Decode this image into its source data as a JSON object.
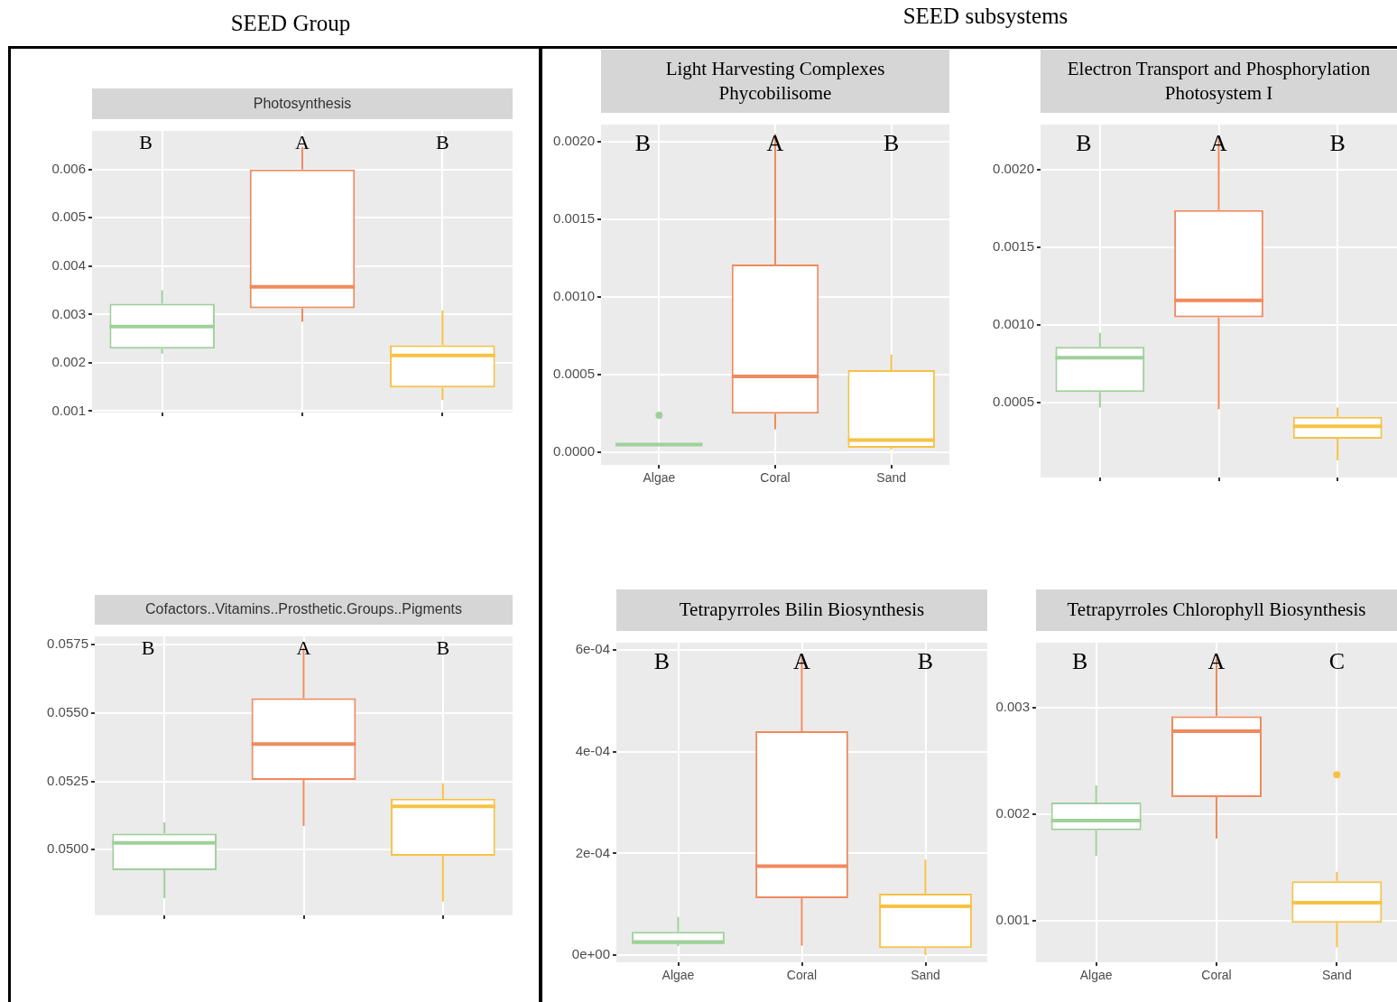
{
  "chart_data": [
    {
      "type": "box",
      "title": "Photosynthesis",
      "categories": [
        null,
        null,
        null
      ],
      "colors": [
        "#9fd09a",
        "#f08a5d",
        "#f7c244"
      ],
      "tick_labels": "y",
      "grid": true,
      "ylim": [
        0.00097,
        0.0068
      ],
      "yticks": [
        {
          "value": 0.001,
          "label": "0.001"
        },
        {
          "value": 0.002,
          "label": "0.002"
        },
        {
          "value": 0.003,
          "label": "0.003"
        },
        {
          "value": 0.004,
          "label": "0.004"
        },
        {
          "value": 0.005,
          "label": "0.005"
        },
        {
          "value": 0.006,
          "label": "0.006"
        }
      ],
      "boxes": [
        {
          "low": 0.00219,
          "q1": 0.00229,
          "median": 0.00275,
          "q3": 0.00322,
          "high": 0.0035
        },
        {
          "low": 0.00285,
          "q1": 0.00313,
          "median": 0.00357,
          "q3": 0.006,
          "high": 0.00647
        },
        {
          "low": 0.00123,
          "q1": 0.00149,
          "median": 0.00215,
          "q3": 0.00236,
          "high": 0.00308
        }
      ],
      "annotations": [
        "SEED Group",
        "B",
        "A",
        "B"
      ]
    },
    {
      "type": "box",
      "title": "Cofactors..Vitamins..Prosthetic.Groups..Pigments",
      "categories": [
        null,
        null,
        null
      ],
      "colors": [
        "#9fd09a",
        "#f08a5d",
        "#f7c244"
      ],
      "tick_labels": "y",
      "grid": true,
      "ylim": [
        0.0476,
        0.0578
      ],
      "yticks": [
        {
          "value": 0.05,
          "label": "0.0500"
        },
        {
          "value": 0.0525,
          "label": "0.0525"
        },
        {
          "value": 0.055,
          "label": "0.0550"
        },
        {
          "value": 0.0575,
          "label": "0.0575"
        }
      ],
      "boxes": [
        {
          "low": 0.04823,
          "q1": 0.04925,
          "median": 0.05025,
          "q3": 0.05059,
          "high": 0.051
        },
        {
          "low": 0.05087,
          "q1": 0.05255,
          "median": 0.05386,
          "q3": 0.05554,
          "high": 0.05738
        },
        {
          "low": 0.0481,
          "q1": 0.04978,
          "median": 0.05159,
          "q3": 0.05187,
          "high": 0.05243
        }
      ],
      "annotations": [
        "B",
        "A",
        "B"
      ]
    },
    {
      "type": "box",
      "title": "Light Harvesting Complexes\nPhycobilisome",
      "categories": [
        "Algae",
        "Coral",
        "Sand"
      ],
      "colors": [
        "#9fd09a",
        "#f08a5d",
        "#f7c244"
      ],
      "grid": true,
      "ylim": [
        -8e-05,
        0.00211
      ],
      "yticks": [
        {
          "value": 0,
          "label": "0.0000"
        },
        {
          "value": 0.0005,
          "label": "0.0005"
        },
        {
          "value": 0.001,
          "label": "0.0010"
        },
        {
          "value": 0.0015,
          "label": "0.0015"
        },
        {
          "value": 0.002,
          "label": "0.0020"
        }
      ],
      "boxes": [
        {
          "low": 5e-05,
          "q1": 5e-05,
          "median": 5e-05,
          "q3": 5e-05,
          "high": 5e-05,
          "outliers": [
            0.00024
          ]
        },
        {
          "low": 0.00015,
          "q1": 0.00025,
          "median": 0.00049,
          "q3": 0.00121,
          "high": 0.00205
        },
        {
          "low": 2e-05,
          "q1": 3e-05,
          "median": 8e-05,
          "q3": 0.00053,
          "high": 0.00063
        }
      ],
      "annotations": [
        "SEED subsystems",
        "B",
        "A",
        "B"
      ]
    },
    {
      "type": "box",
      "title": "Electron Transport and Phosphorylation\nPhotosystem I",
      "categories": [
        null,
        null,
        null
      ],
      "colors": [
        "#9fd09a",
        "#f08a5d",
        "#f7c244"
      ],
      "tick_labels": "y",
      "grid": true,
      "ylim": [
        2e-05,
        0.00229
      ],
      "yticks": [
        {
          "value": 0.0005,
          "label": "0.0005"
        },
        {
          "value": 0.001,
          "label": "0.0010"
        },
        {
          "value": 0.0015,
          "label": "0.0015"
        },
        {
          "value": 0.002,
          "label": "0.0020"
        }
      ],
      "boxes": [
        {
          "low": 0.00047,
          "q1": 0.00057,
          "median": 0.00079,
          "q3": 0.00086,
          "high": 0.00095
        },
        {
          "low": 0.00046,
          "q1": 0.00105,
          "median": 0.00116,
          "q3": 0.00174,
          "high": 0.00219
        },
        {
          "low": 0.00013,
          "q1": 0.00027,
          "median": 0.00035,
          "q3": 0.00041,
          "high": 0.00047
        }
      ],
      "annotations": [
        "B",
        "A",
        "B"
      ]
    },
    {
      "type": "box",
      "title": "Tetrapyrroles Bilin Biosynthesis",
      "categories": [
        "Algae",
        "Coral",
        "Sand"
      ],
      "colors": [
        "#9fd09a",
        "#f08a5d",
        "#f7c244"
      ],
      "grid": true,
      "ylim": [
        -1.4e-05,
        0.000614
      ],
      "yticks": [
        {
          "value": 0,
          "label": "0e+00"
        },
        {
          "value": 0.0002,
          "label": "2e-04"
        },
        {
          "value": 0.0004,
          "label": "4e-04"
        },
        {
          "value": 0.0006,
          "label": "6e-04"
        }
      ],
      "boxes": [
        {
          "low": 1.8e-05,
          "q1": 2.2e-05,
          "median": 2.6e-05,
          "q3": 4.6e-05,
          "high": 7.5e-05
        },
        {
          "low": 1.9e-05,
          "q1": 0.000112,
          "median": 0.000175,
          "q3": 0.00044,
          "high": 0.000584
        },
        {
          "low": 0,
          "q1": 1.4e-05,
          "median": 9.6e-05,
          "q3": 0.000121,
          "high": 0.000188
        }
      ],
      "annotations": [
        "B",
        "A",
        "B"
      ]
    },
    {
      "type": "box",
      "title": "Tetrapyrroles Chlorophyll Biosynthesis",
      "categories": [
        "Algae",
        "Coral",
        "Sand"
      ],
      "colors": [
        "#9fd09a",
        "#f08a5d",
        "#f7c244"
      ],
      "grid": true,
      "ylim": [
        0.00061,
        0.00361
      ],
      "yticks": [
        {
          "value": 0.001,
          "label": "0.001"
        },
        {
          "value": 0.002,
          "label": "0.002"
        },
        {
          "value": 0.003,
          "label": "0.003"
        }
      ],
      "boxes": [
        {
          "low": 0.00161,
          "q1": 0.00185,
          "median": 0.00194,
          "q3": 0.00211,
          "high": 0.00227
        },
        {
          "low": 0.00177,
          "q1": 0.00216,
          "median": 0.00278,
          "q3": 0.00292,
          "high": 0.00346
        },
        {
          "low": 0.00075,
          "q1": 0.00098,
          "median": 0.00117,
          "q3": 0.00137,
          "high": 0.00146,
          "outliers": [
            0.00237
          ]
        }
      ],
      "annotations": [
        "B",
        "A",
        "C"
      ]
    }
  ]
}
